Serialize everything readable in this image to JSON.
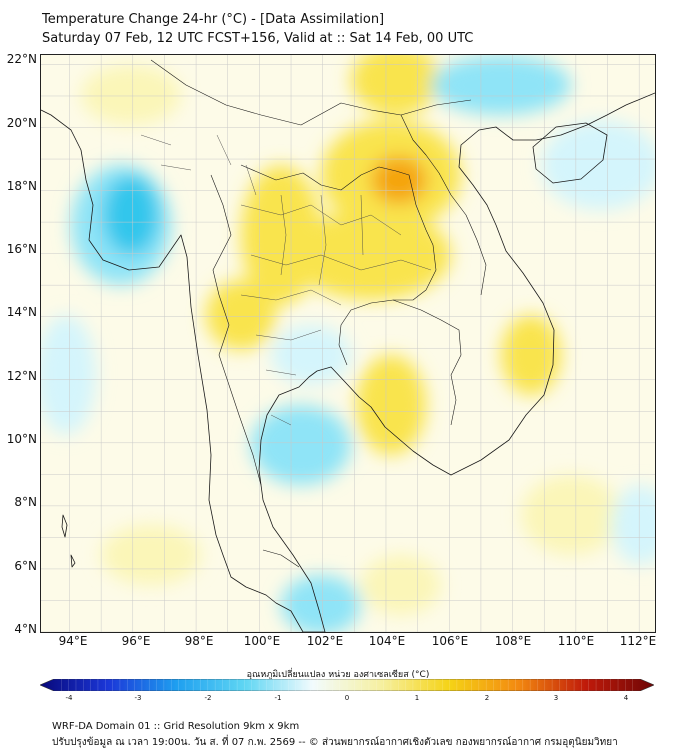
{
  "title_line1": "Temperature Change 24-hr (°C) - [Data Assimilation]",
  "title_line2": "Saturday 07 Feb, 12 UTC FCST+156, Valid at :: Sat 14 Feb, 00 UTC",
  "map": {
    "lat_labels": [
      "22°N",
      "20°N",
      "18°N",
      "16°N",
      "14°N",
      "12°N",
      "10°N",
      "8°N",
      "6°N",
      "4°N"
    ],
    "lon_labels": [
      "94°E",
      "96°E",
      "98°E",
      "100°E",
      "102°E",
      "104°E",
      "106°E",
      "108°E",
      "110°E",
      "112°E"
    ],
    "lat_range": [
      4,
      22.3
    ],
    "lon_range": [
      93.1,
      112.5
    ],
    "anomaly_colors": {
      "strong_cool": "#32c6ec",
      "cool": "#8fe4f7",
      "light_cool": "#d4f5fc",
      "light_warm": "#fbf6b8",
      "warm": "#f9e44e",
      "strong_warm": "#f5a40f"
    }
  },
  "colorbar": {
    "title": "อุณหภูมิเปลี่ยนแปลง หน่วย องศาเซลเซียส (°C)",
    "ticks": [
      "-4",
      "-3",
      "-2",
      "-1",
      "0",
      "1",
      "2",
      "3",
      "4"
    ],
    "range": [
      -4,
      4
    ],
    "colors": [
      "#08087a",
      "#1b37d8",
      "#1e9ff0",
      "#5fd6f3",
      "#f2fbfd",
      "#f6f0a0",
      "#f5d316",
      "#f38a10",
      "#c01a0a",
      "#6e0606"
    ]
  },
  "footer_line1": "WRF-DA Domain 01 :: Grid Resolution 9km x 9km",
  "footer_line2": "ปรับปรุงข้อมูล ณ เวลา 19:00น. วัน ส. ที่ 07 ก.พ. 2569 -- © ส่วนพยากรณ์อากาศเชิงตัวเลข กองพยากรณ์อากาศ กรมอุตุนิยมวิทยา"
}
